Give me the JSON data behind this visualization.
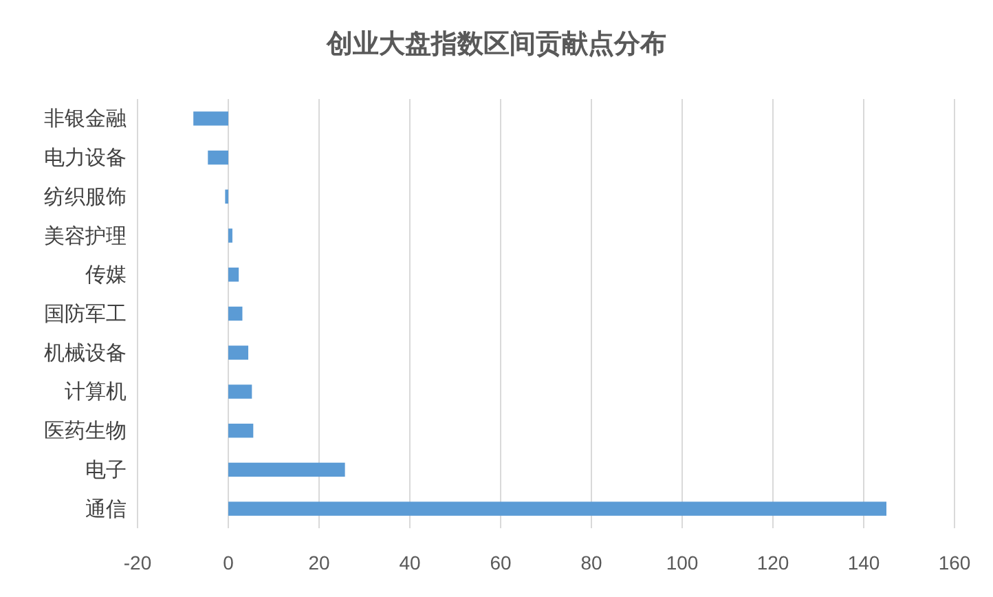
{
  "chart_data": {
    "type": "bar",
    "orientation": "horizontal",
    "title": "创业大盘指数区间贡献点分布",
    "categories": [
      "非银金融",
      "电力设备",
      "纺织服饰",
      "美容护理",
      "传媒",
      "国防军工",
      "机械设备",
      "计算机",
      "医药生物",
      "电子",
      "通信"
    ],
    "values": [
      -7.7,
      -4.5,
      -0.7,
      0.9,
      2.3,
      3.1,
      4.4,
      5.2,
      5.5,
      25.7,
      145
    ],
    "color": "#5b9bd5",
    "xlim": [
      -20,
      160
    ],
    "xticks": [
      -20,
      0,
      20,
      40,
      60,
      80,
      100,
      120,
      140,
      160
    ],
    "grid": "x"
  }
}
